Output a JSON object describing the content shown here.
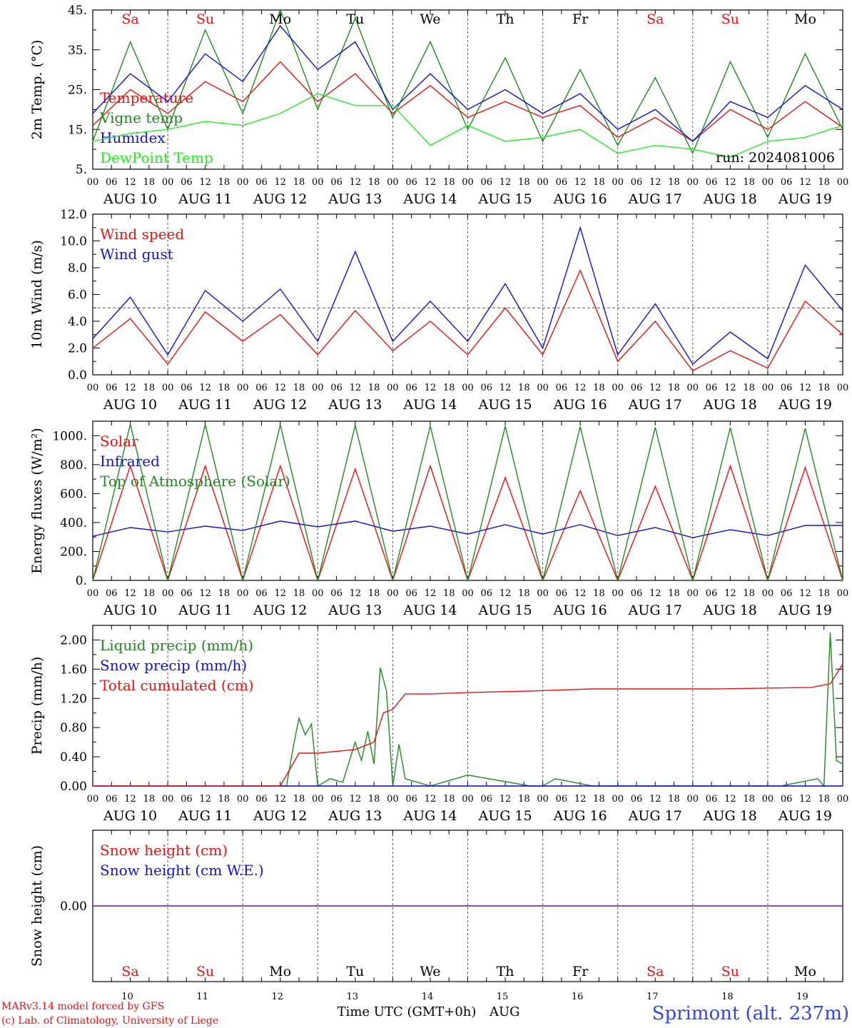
{
  "colors": {
    "red": "#ee1111",
    "green": "#228822",
    "blue": "#1111dd",
    "lightgreen": "#22ee22",
    "purple": "#7733aa",
    "frame": "#000000",
    "grid": "#555555",
    "station": "#3344ee"
  },
  "days": [
    "AUG 10",
    "AUG 11",
    "AUG 12",
    "AUG 13",
    "AUG 14",
    "AUG 15",
    "AUG 16",
    "AUG 17",
    "AUG 18",
    "AUG 19"
  ],
  "day_numbers": [
    "10",
    "11",
    "12",
    "13",
    "14",
    "15",
    "16",
    "17",
    "18",
    "19"
  ],
  "weekdays": [
    {
      "label": "Sa",
      "color": "#ee1111"
    },
    {
      "label": "Su",
      "color": "#ee1111"
    },
    {
      "label": "Mo",
      "color": "#000000"
    },
    {
      "label": "Tu",
      "color": "#000000"
    },
    {
      "label": "We",
      "color": "#000000"
    },
    {
      "label": "Th",
      "color": "#000000"
    },
    {
      "label": "Fr",
      "color": "#000000"
    },
    {
      "label": "Sa",
      "color": "#ee1111"
    },
    {
      "label": "Su",
      "color": "#ee1111"
    },
    {
      "label": "Mo",
      "color": "#000000"
    }
  ],
  "hour_ticks": [
    "00",
    "06",
    "12",
    "18"
  ],
  "hour_end": "00",
  "footer": {
    "model": "MARv3.14 model forced by GFS",
    "lab": "(c) Lab. of Climatology, University of Liege",
    "xlabel": "Time UTC (GMT+0h)",
    "month": "AUG",
    "station": "Sprimont (alt. 237m)"
  },
  "chart_data": [
    {
      "type": "line",
      "ylabel": "2m Temp. (°C)",
      "ylim": [
        5,
        45
      ],
      "yticks": [
        "5.",
        "15.",
        "25.",
        "35.",
        "45."
      ],
      "run_label": "run: 2024081006",
      "legend_position": "top-left",
      "series": [
        {
          "name": "Temperature",
          "color": "#ee1111",
          "x": [
            0,
            12,
            24,
            36,
            48,
            60,
            72,
            84,
            96,
            108,
            120,
            132,
            144,
            156,
            168,
            180,
            192,
            204,
            216,
            228,
            240
          ],
          "values": [
            16,
            25,
            19,
            27,
            22,
            32,
            22,
            29,
            19,
            26,
            18,
            22,
            18,
            21,
            13,
            18,
            12,
            20,
            15,
            22,
            15.5
          ]
        },
        {
          "name": "Vigne temp",
          "color": "#228822",
          "x": [
            0,
            12,
            24,
            36,
            48,
            60,
            72,
            84,
            96,
            108,
            120,
            132,
            144,
            156,
            168,
            180,
            192,
            204,
            216,
            228,
            240
          ],
          "values": [
            12,
            37,
            15,
            40,
            19,
            45,
            20,
            43,
            18,
            37,
            15,
            33,
            12,
            30,
            11,
            28,
            9,
            32,
            13,
            34,
            15
          ]
        },
        {
          "name": "Humidex",
          "color": "#1111dd",
          "x": [
            0,
            12,
            24,
            36,
            48,
            60,
            72,
            84,
            96,
            108,
            120,
            132,
            144,
            156,
            168,
            180,
            192,
            204,
            216,
            228,
            240
          ],
          "values": [
            19,
            29,
            22,
            34,
            27,
            41,
            30,
            37,
            20,
            29,
            20,
            25,
            19,
            24,
            15,
            20,
            12,
            22,
            18,
            26,
            20
          ]
        },
        {
          "name": "DewPoint Temp",
          "color": "#22ee22",
          "x": [
            0,
            12,
            24,
            36,
            48,
            60,
            72,
            84,
            96,
            108,
            120,
            132,
            144,
            156,
            168,
            180,
            192,
            204,
            216,
            228,
            240
          ],
          "values": [
            12,
            14,
            15,
            17,
            16,
            19,
            24,
            21,
            21,
            11,
            16,
            12,
            13,
            15,
            9,
            11,
            10,
            8,
            12,
            13,
            16
          ]
        }
      ]
    },
    {
      "type": "line",
      "ylabel": "10m Wind (m/s)",
      "ylim": [
        0,
        12
      ],
      "yticks": [
        "0.0",
        "2.0",
        "4.0",
        "6.0",
        "8.0",
        "10.0",
        "12.0"
      ],
      "reference_line": 5.0,
      "legend_position": "top-left",
      "series": [
        {
          "name": "Wind speed",
          "color": "#ee1111",
          "x": [
            0,
            12,
            24,
            36,
            48,
            60,
            72,
            84,
            96,
            108,
            120,
            132,
            144,
            156,
            168,
            180,
            192,
            204,
            216,
            228,
            240
          ],
          "values": [
            2.0,
            4.2,
            0.8,
            4.7,
            2.5,
            4.5,
            1.5,
            4.8,
            1.8,
            4.0,
            1.5,
            5.0,
            1.5,
            7.8,
            1.0,
            4.0,
            0.3,
            1.8,
            0.5,
            5.5,
            3.0
          ]
        },
        {
          "name": "Wind gust",
          "color": "#1111dd",
          "x": [
            0,
            12,
            24,
            36,
            48,
            60,
            72,
            84,
            96,
            108,
            120,
            132,
            144,
            156,
            168,
            180,
            192,
            204,
            216,
            228,
            240
          ],
          "values": [
            2.7,
            5.8,
            1.5,
            6.3,
            4.0,
            6.4,
            2.5,
            9.2,
            2.5,
            5.5,
            2.5,
            6.8,
            2.0,
            11.0,
            1.5,
            5.3,
            0.8,
            3.2,
            1.2,
            8.2,
            4.8
          ]
        }
      ]
    },
    {
      "type": "line",
      "ylabel": "Energy fluxes (W/m²)",
      "ylim": [
        0,
        1100
      ],
      "yticks": [
        "0.",
        "200.",
        "400.",
        "600.",
        "800.",
        "1000."
      ],
      "legend_position": "top-left",
      "series": [
        {
          "name": "Solar",
          "color": "#ee1111",
          "x": [
            0,
            12,
            24,
            36,
            48,
            60,
            72,
            84,
            96,
            108,
            120,
            132,
            144,
            156,
            168,
            180,
            192,
            204,
            216,
            228,
            240
          ],
          "values": [
            0,
            790,
            0,
            790,
            0,
            790,
            0,
            770,
            0,
            790,
            0,
            710,
            0,
            620,
            0,
            650,
            0,
            790,
            0,
            780,
            0
          ]
        },
        {
          "name": "Infrared",
          "color": "#1111dd",
          "x": [
            0,
            12,
            24,
            36,
            48,
            60,
            72,
            84,
            96,
            108,
            120,
            132,
            144,
            156,
            168,
            180,
            192,
            204,
            216,
            228,
            240
          ],
          "values": [
            305,
            365,
            335,
            375,
            345,
            410,
            370,
            410,
            340,
            375,
            320,
            385,
            320,
            385,
            310,
            365,
            295,
            350,
            310,
            380,
            380
          ]
        },
        {
          "name": "Top of Atmosphere (Solar)",
          "color": "#228822",
          "x": [
            0,
            12,
            24,
            36,
            48,
            60,
            72,
            84,
            96,
            108,
            120,
            132,
            144,
            156,
            168,
            180,
            192,
            204,
            216,
            228,
            240
          ],
          "values": [
            0,
            1080,
            0,
            1078,
            0,
            1075,
            0,
            1072,
            0,
            1068,
            0,
            1065,
            0,
            1062,
            0,
            1058,
            0,
            1055,
            0,
            1050,
            0
          ]
        }
      ]
    },
    {
      "type": "line",
      "ylabel": "Precip (mm/h)",
      "ylim": [
        0,
        2.2
      ],
      "yticks": [
        "0.00",
        "0.40",
        "0.80",
        "1.20",
        "1.60",
        "2.00"
      ],
      "legend_position": "top-left",
      "series": [
        {
          "name": "Liquid precip (mm/h)",
          "color": "#228822",
          "x": [
            0,
            48,
            62,
            64,
            66,
            68,
            70,
            72,
            76,
            80,
            84,
            86,
            88,
            90,
            92,
            94,
            96,
            98,
            100,
            108,
            120,
            140,
            144,
            148,
            160,
            180,
            220,
            232,
            234,
            236,
            238,
            240
          ],
          "values": [
            0,
            0,
            0,
            0.5,
            0.93,
            0.7,
            0.85,
            0,
            0.1,
            0.05,
            0.6,
            0.35,
            0.75,
            0.3,
            1.62,
            1.3,
            0,
            0.57,
            0.1,
            0,
            0.15,
            0,
            0,
            0.1,
            0,
            0,
            0,
            0.1,
            0,
            2.1,
            0.35,
            0.3
          ]
        },
        {
          "name": "Snow precip (mm/h)",
          "color": "#1111dd",
          "x": [
            0,
            240
          ],
          "values": [
            0,
            0
          ]
        },
        {
          "name": "Total cumulated (cm)",
          "color": "#ee1111",
          "x": [
            0,
            60,
            66,
            72,
            84,
            90,
            93,
            96,
            100,
            108,
            120,
            140,
            160,
            200,
            230,
            236,
            240
          ],
          "values": [
            0,
            0,
            0.45,
            0.45,
            0.5,
            0.6,
            1.0,
            1.05,
            1.26,
            1.26,
            1.28,
            1.3,
            1.33,
            1.33,
            1.35,
            1.4,
            1.67
          ]
        }
      ]
    },
    {
      "type": "line",
      "ylabel": "Snow height (cm)",
      "ylim": [
        -1,
        1
      ],
      "yticks": [
        "0.00"
      ],
      "legend_position": "top-left",
      "series": [
        {
          "name": "Snow height (cm)",
          "color": "#ee1111",
          "x": [
            0,
            240
          ],
          "values": [
            0,
            0
          ]
        },
        {
          "name": "Snow height (cm W.E.)",
          "color": "#1111dd",
          "x": [
            0,
            240
          ],
          "values": [
            0,
            0
          ]
        }
      ]
    }
  ]
}
